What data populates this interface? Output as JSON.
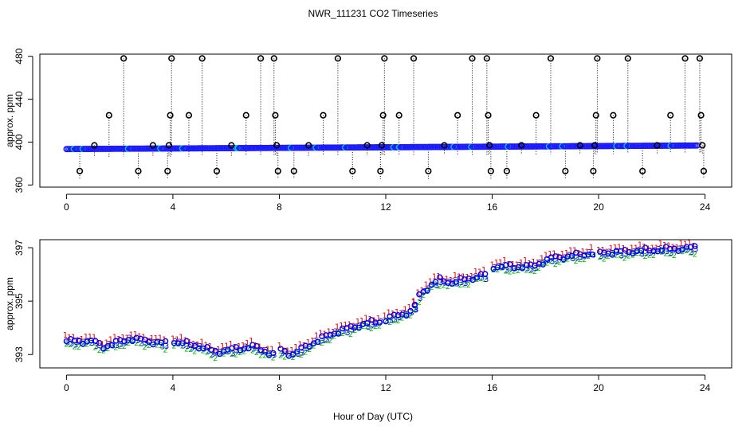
{
  "chart_data": {
    "title": "NWR_111231  CO2 Timeseries",
    "xlabel": "Hour of Day (UTC)",
    "palette": {
      "spike": "#000000",
      "stem": "#000000",
      "baseline": "#1a1aff",
      "baseline_alt": "#00c8d2",
      "series_1": "#e00000",
      "series_2": "#00b400",
      "series_3": "#0000ff",
      "mean": "#0000ff"
    },
    "panels": [
      {
        "type": "scatter",
        "ylabel": "approx. ppm",
        "xlim": [
          -1,
          25
        ],
        "ylim": [
          358,
          482
        ],
        "xticks": [
          0,
          4,
          8,
          12,
          16,
          20,
          24
        ],
        "yticks": [
          360,
          400,
          440,
          480
        ],
        "baseline_start": 393.5,
        "baseline_end": 396.8,
        "baseline_range": [
          0,
          23.7
        ],
        "spikes": [
          {
            "x": 0.5,
            "y": 373
          },
          {
            "x": 1.05,
            "y": 397
          },
          {
            "x": 1.6,
            "y": 425
          },
          {
            "x": 2.15,
            "y": 478
          },
          {
            "x": 2.7,
            "y": 373
          },
          {
            "x": 3.25,
            "y": 397
          },
          {
            "x": 3.8,
            "y": 373
          },
          {
            "x": 3.85,
            "y": 397
          },
          {
            "x": 3.9,
            "y": 425
          },
          {
            "x": 3.95,
            "y": 478
          },
          {
            "x": 4.6,
            "y": 425
          },
          {
            "x": 5.1,
            "y": 478
          },
          {
            "x": 5.65,
            "y": 373
          },
          {
            "x": 6.2,
            "y": 397
          },
          {
            "x": 6.75,
            "y": 425
          },
          {
            "x": 7.3,
            "y": 478
          },
          {
            "x": 7.8,
            "y": 478
          },
          {
            "x": 7.85,
            "y": 425
          },
          {
            "x": 7.9,
            "y": 397
          },
          {
            "x": 7.95,
            "y": 373
          },
          {
            "x": 8.55,
            "y": 373
          },
          {
            "x": 9.1,
            "y": 397
          },
          {
            "x": 9.65,
            "y": 425
          },
          {
            "x": 10.2,
            "y": 478
          },
          {
            "x": 10.75,
            "y": 373
          },
          {
            "x": 11.3,
            "y": 397
          },
          {
            "x": 11.8,
            "y": 373
          },
          {
            "x": 11.85,
            "y": 397
          },
          {
            "x": 11.9,
            "y": 425
          },
          {
            "x": 11.95,
            "y": 478
          },
          {
            "x": 12.5,
            "y": 425
          },
          {
            "x": 13.05,
            "y": 478
          },
          {
            "x": 13.6,
            "y": 373
          },
          {
            "x": 14.2,
            "y": 397
          },
          {
            "x": 14.7,
            "y": 425
          },
          {
            "x": 15.25,
            "y": 478
          },
          {
            "x": 15.8,
            "y": 478
          },
          {
            "x": 15.85,
            "y": 425
          },
          {
            "x": 15.9,
            "y": 397
          },
          {
            "x": 15.95,
            "y": 373
          },
          {
            "x": 16.55,
            "y": 373
          },
          {
            "x": 17.1,
            "y": 397
          },
          {
            "x": 17.65,
            "y": 425
          },
          {
            "x": 18.2,
            "y": 478
          },
          {
            "x": 18.75,
            "y": 373
          },
          {
            "x": 19.3,
            "y": 397
          },
          {
            "x": 19.8,
            "y": 373
          },
          {
            "x": 19.85,
            "y": 397
          },
          {
            "x": 19.9,
            "y": 425
          },
          {
            "x": 19.95,
            "y": 478
          },
          {
            "x": 20.55,
            "y": 425
          },
          {
            "x": 21.1,
            "y": 478
          },
          {
            "x": 21.65,
            "y": 373
          },
          {
            "x": 22.2,
            "y": 397
          },
          {
            "x": 22.7,
            "y": 425
          },
          {
            "x": 23.25,
            "y": 478
          },
          {
            "x": 23.8,
            "y": 478
          },
          {
            "x": 23.85,
            "y": 425
          },
          {
            "x": 23.9,
            "y": 397
          },
          {
            "x": 23.95,
            "y": 373
          }
        ]
      },
      {
        "type": "scatter",
        "ylabel": "approx. ppm",
        "xlim": [
          -1,
          25
        ],
        "ylim": [
          392.5,
          397.3
        ],
        "xticks": [
          0,
          4,
          8,
          12,
          16,
          20,
          24
        ],
        "yticks": [
          393,
          395,
          397
        ],
        "series_labels": [
          "1",
          "2",
          "3"
        ],
        "offsets": [
          0.15,
          -0.12,
          -0.03
        ],
        "segments": [
          [
            0,
            3.8
          ],
          [
            4.05,
            7.8
          ],
          [
            8.05,
            11.8
          ],
          [
            12.0,
            13.1
          ],
          [
            13.1,
            15.8
          ],
          [
            16.05,
            19.8
          ],
          [
            20.05,
            23.7
          ]
        ],
        "trend": [
          [
            0,
            393.5
          ],
          [
            1.0,
            393.5
          ],
          [
            1.4,
            393.3
          ],
          [
            2.4,
            393.6
          ],
          [
            3.8,
            393.4
          ],
          [
            4.0,
            393.5
          ],
          [
            5.0,
            393.3
          ],
          [
            5.6,
            393.1
          ],
          [
            7.0,
            393.3
          ],
          [
            7.8,
            393.0
          ],
          [
            8.0,
            393.2
          ],
          [
            8.5,
            393.0
          ],
          [
            9.0,
            393.3
          ],
          [
            10.0,
            393.8
          ],
          [
            11.0,
            394.1
          ],
          [
            12.0,
            394.3
          ],
          [
            12.5,
            394.5
          ],
          [
            13.0,
            394.6
          ],
          [
            13.3,
            395.3
          ],
          [
            14.0,
            395.8
          ],
          [
            14.5,
            395.7
          ],
          [
            15.8,
            396.0
          ],
          [
            16.0,
            396.3
          ],
          [
            17.5,
            396.3
          ],
          [
            18.2,
            396.6
          ],
          [
            19.8,
            396.8
          ],
          [
            20.0,
            396.8
          ],
          [
            23.7,
            397.0
          ]
        ]
      }
    ]
  }
}
